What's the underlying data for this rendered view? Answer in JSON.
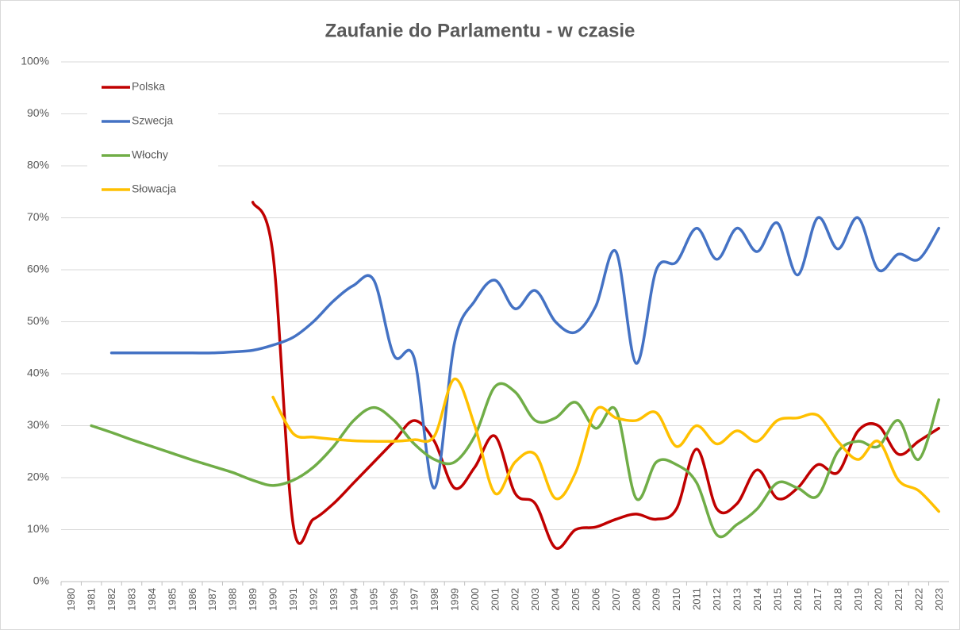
{
  "chart_data": {
    "type": "line",
    "title": "Zaufanie do Parlamentu - w czasie",
    "categories": [
      "1980",
      "1981",
      "1982",
      "1983",
      "1984",
      "1985",
      "1986",
      "1987",
      "1988",
      "1989",
      "1990",
      "1991",
      "1992",
      "1993",
      "1994",
      "1995",
      "1996",
      "1997",
      "1998",
      "1999",
      "2000",
      "2001",
      "2002",
      "2003",
      "2004",
      "2005",
      "2006",
      "2007",
      "2008",
      "2009",
      "2010",
      "2011",
      "2012",
      "2013",
      "2014",
      "2015",
      "2016",
      "2017",
      "2018",
      "2019",
      "2020",
      "2021",
      "2022",
      "2023"
    ],
    "series": [
      {
        "name": "Polska",
        "color": "#c00000",
        "values": [
          null,
          null,
          null,
          null,
          null,
          null,
          null,
          null,
          null,
          73,
          63,
          11,
          12,
          15,
          19,
          23,
          27,
          31,
          27,
          18,
          22,
          28,
          17,
          15,
          6.5,
          10,
          10.5,
          12,
          13,
          12,
          14,
          25.5,
          14,
          15,
          21.5,
          16,
          18,
          22.5,
          21,
          29,
          30,
          24.5,
          27,
          29.5
        ]
      },
      {
        "name": "Szwecja",
        "color": "#4472c4",
        "values": [
          null,
          null,
          44,
          44,
          44,
          44,
          44,
          44,
          44.2,
          44.5,
          45.5,
          47,
          50,
          54,
          57,
          58,
          43.5,
          43,
          18,
          46,
          54,
          58,
          52.5,
          56,
          50,
          48,
          53,
          63.5,
          42,
          60,
          61.5,
          68,
          62,
          68,
          63.5,
          69,
          59,
          70,
          64,
          70,
          60,
          63,
          62,
          68
        ]
      },
      {
        "name": "Włochy",
        "color": "#70ad47",
        "values": [
          null,
          30,
          28.7,
          27.3,
          26,
          24.7,
          23.4,
          22.2,
          21,
          19.5,
          18.5,
          19.5,
          22,
          26,
          31,
          33.5,
          31,
          26.5,
          23.5,
          23,
          28,
          37.5,
          36.5,
          31,
          31.5,
          34.5,
          29.5,
          33,
          16,
          23,
          22.5,
          19,
          9,
          11,
          14,
          19,
          18,
          16.5,
          25,
          27,
          26,
          31,
          23.5,
          35
        ]
      },
      {
        "name": "Słowacja",
        "color": "#ffc000",
        "values": [
          null,
          null,
          null,
          null,
          null,
          null,
          null,
          null,
          null,
          null,
          35.5,
          28.5,
          27.8,
          27.4,
          27.1,
          27,
          27,
          27.3,
          28,
          39,
          30,
          17,
          23,
          24.5,
          16,
          21,
          33,
          31.5,
          31,
          32.5,
          26,
          30,
          26.5,
          29,
          27,
          31,
          31.5,
          32,
          27,
          23.5,
          27,
          19.5,
          17.5,
          13.5
        ]
      }
    ],
    "ylim": [
      0,
      100
    ],
    "yticks": [
      {
        "value": 0,
        "label": "0%"
      },
      {
        "value": 10,
        "label": "10%"
      },
      {
        "value": 20,
        "label": "20%"
      },
      {
        "value": 30,
        "label": "30%"
      },
      {
        "value": 40,
        "label": "40%"
      },
      {
        "value": 50,
        "label": "50%"
      },
      {
        "value": 60,
        "label": "60%"
      },
      {
        "value": 70,
        "label": "70%"
      },
      {
        "value": 80,
        "label": "80%"
      },
      {
        "value": 90,
        "label": "90%"
      },
      {
        "value": 100,
        "label": "100%"
      }
    ],
    "grid": true,
    "smooth": true,
    "legend": "upper left"
  }
}
